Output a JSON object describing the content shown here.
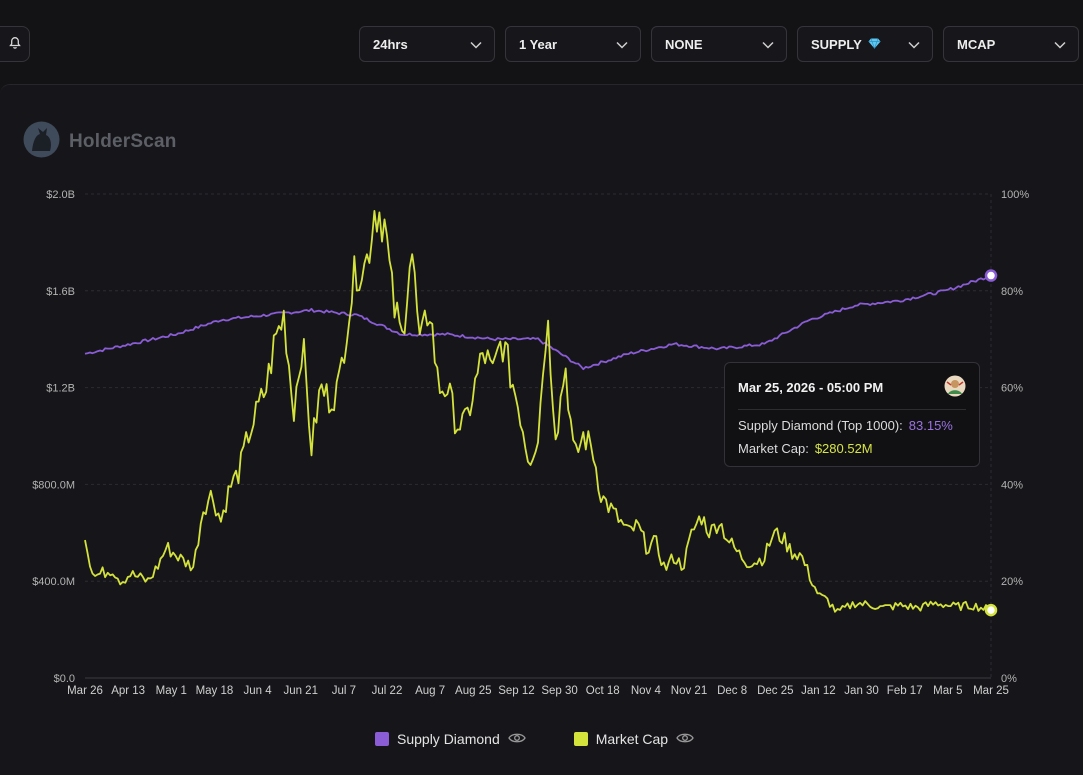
{
  "toolbar": {
    "filters": [
      {
        "label": "24hrs",
        "icon": "chevron-down-icon"
      },
      {
        "label": "1 Year",
        "icon": "chevron-down-icon"
      },
      {
        "label": "NONE",
        "icon": "chevron-down-icon"
      },
      {
        "label": "SUPPLY",
        "badge_icon": "diamond-icon",
        "icon": "chevron-down-icon"
      },
      {
        "label": "MCAP",
        "icon": "chevron-down-icon"
      }
    ],
    "bell_icon": "bell-icon"
  },
  "brand": {
    "name": "HolderScan",
    "logo_icon": "cat-logo-icon"
  },
  "tooltip": {
    "date": "Mar 25, 2026 - 05:00 PM",
    "supply_label": "Supply Diamond (Top 1000):",
    "supply_value": "83.15%",
    "mcap_label": "Market Cap:",
    "mcap_value": "$280.52M"
  },
  "legend": [
    {
      "label": "Supply Diamond",
      "color": "#8a5cd6",
      "icon": "eye-icon"
    },
    {
      "label": "Market Cap",
      "color": "#d4e23c",
      "icon": "eye-icon"
    }
  ],
  "chart_data": {
    "type": "line",
    "x_ticks": [
      "Mar 26",
      "Apr 13",
      "May 1",
      "May 18",
      "Jun 4",
      "Jun 21",
      "Jul 7",
      "Jul 22",
      "Aug 7",
      "Aug 25",
      "Sep 12",
      "Sep 30",
      "Oct 18",
      "Nov 4",
      "Nov 21",
      "Dec 8",
      "Dec 25",
      "Jan 12",
      "Jan 30",
      "Feb 17",
      "Mar 5",
      "Mar 25"
    ],
    "y_left": {
      "ticks": [
        "$0.0",
        "$400.0M",
        "$800.0M",
        "$1.2B",
        "$1.6B",
        "$2.0B"
      ],
      "range": [
        0,
        2000
      ],
      "unit": "M USD"
    },
    "y_right": {
      "ticks": [
        "0%",
        "20%",
        "40%",
        "60%",
        "80%",
        "100%"
      ],
      "range": [
        0,
        100
      ],
      "unit": "%"
    },
    "series": [
      {
        "name": "Supply Diamond",
        "axis": "right",
        "color": "#8a5cd6",
        "x": [
          0,
          5,
          10,
          15,
          20,
          25,
          30,
          35,
          40,
          45,
          50,
          55,
          60,
          65,
          70,
          75,
          80,
          85,
          90,
          95,
          100
        ],
        "values": [
          67,
          69,
          71,
          74,
          75,
          76,
          75,
          71,
          71,
          70,
          70,
          64,
          67,
          69,
          68,
          69,
          74,
          77,
          78,
          80,
          83.15
        ]
      },
      {
        "name": "Market Cap",
        "axis": "left",
        "color": "#d4e23c",
        "x": [
          0,
          1,
          3,
          4,
          5,
          7,
          8,
          9,
          11,
          12,
          13,
          14,
          15,
          16,
          17,
          18,
          19,
          20,
          21,
          22,
          23,
          24,
          25,
          26,
          27,
          28,
          29,
          30,
          31,
          32,
          33,
          34,
          35,
          36,
          37,
          38,
          39,
          40,
          41,
          42,
          43,
          44,
          45,
          46,
          47,
          48,
          49,
          50,
          51,
          52,
          53,
          54,
          55,
          56,
          57,
          58,
          59,
          60,
          61,
          62,
          63,
          64,
          65,
          66,
          67,
          68,
          69,
          70,
          71,
          72,
          73,
          74,
          75,
          76,
          77,
          78,
          79,
          80,
          81,
          82,
          83,
          85,
          87,
          88,
          90,
          92,
          94,
          96,
          98,
          100
        ],
        "values": [
          570,
          420,
          450,
          400,
          430,
          400,
          460,
          540,
          480,
          460,
          700,
          760,
          650,
          790,
          850,
          1000,
          1100,
          1200,
          1400,
          1500,
          1100,
          1400,
          950,
          1200,
          1150,
          1200,
          1500,
          1700,
          1700,
          1950,
          1900,
          1550,
          1400,
          1800,
          1350,
          1550,
          1200,
          1200,
          1050,
          1050,
          1200,
          1350,
          1250,
          1400,
          1250,
          1100,
          900,
          1000,
          1500,
          1000,
          1300,
          900,
          1000,
          950,
          750,
          700,
          650,
          600,
          630,
          540,
          560,
          450,
          500,
          460,
          600,
          670,
          600,
          650,
          570,
          520,
          480,
          480,
          500,
          600,
          580,
          520,
          510,
          420,
          340,
          320,
          270,
          310,
          300,
          290,
          300,
          290,
          310,
          295,
          300,
          280.52
        ]
      }
    ]
  }
}
